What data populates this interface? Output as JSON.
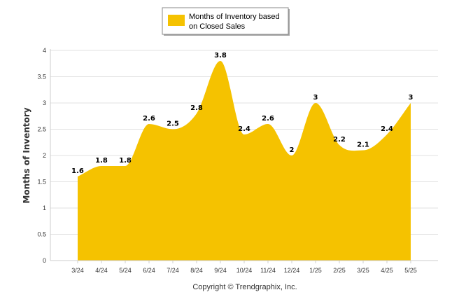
{
  "chart_data": {
    "type": "area",
    "title": "",
    "xlabel": "",
    "ylabel": "Months of Inventory",
    "categories": [
      "3/24",
      "4/24",
      "5/24",
      "6/24",
      "7/24",
      "8/24",
      "9/24",
      "10/24",
      "11/24",
      "12/24",
      "1/25",
      "2/25",
      "3/25",
      "4/25",
      "5/25"
    ],
    "series": [
      {
        "name": "Months of Inventory based on Closed Sales",
        "values": [
          1.6,
          1.8,
          1.8,
          2.6,
          2.5,
          2.8,
          3.8,
          2.4,
          2.6,
          2.0,
          3.0,
          2.2,
          2.1,
          2.4,
          3.0
        ],
        "data_labels": [
          "1.6",
          "1.8",
          "1.8",
          "2.6",
          "2.5",
          "2.8",
          "3.8",
          "2.4",
          "2.6",
          "2",
          "3",
          "2.2",
          "2.1",
          "2.4",
          "3"
        ],
        "color": "#F5C200"
      }
    ],
    "ylim": [
      0,
      4
    ],
    "yticks": [
      "0",
      "0.5",
      "1",
      "1.5",
      "2",
      "2.5",
      "3",
      "3.5",
      "4"
    ],
    "grid": true,
    "legend_position": "top-center"
  },
  "legend": {
    "line1": "Months of Inventory based",
    "line2": "on Closed Sales"
  },
  "copyright": "Copyright © Trendgraphix, Inc."
}
